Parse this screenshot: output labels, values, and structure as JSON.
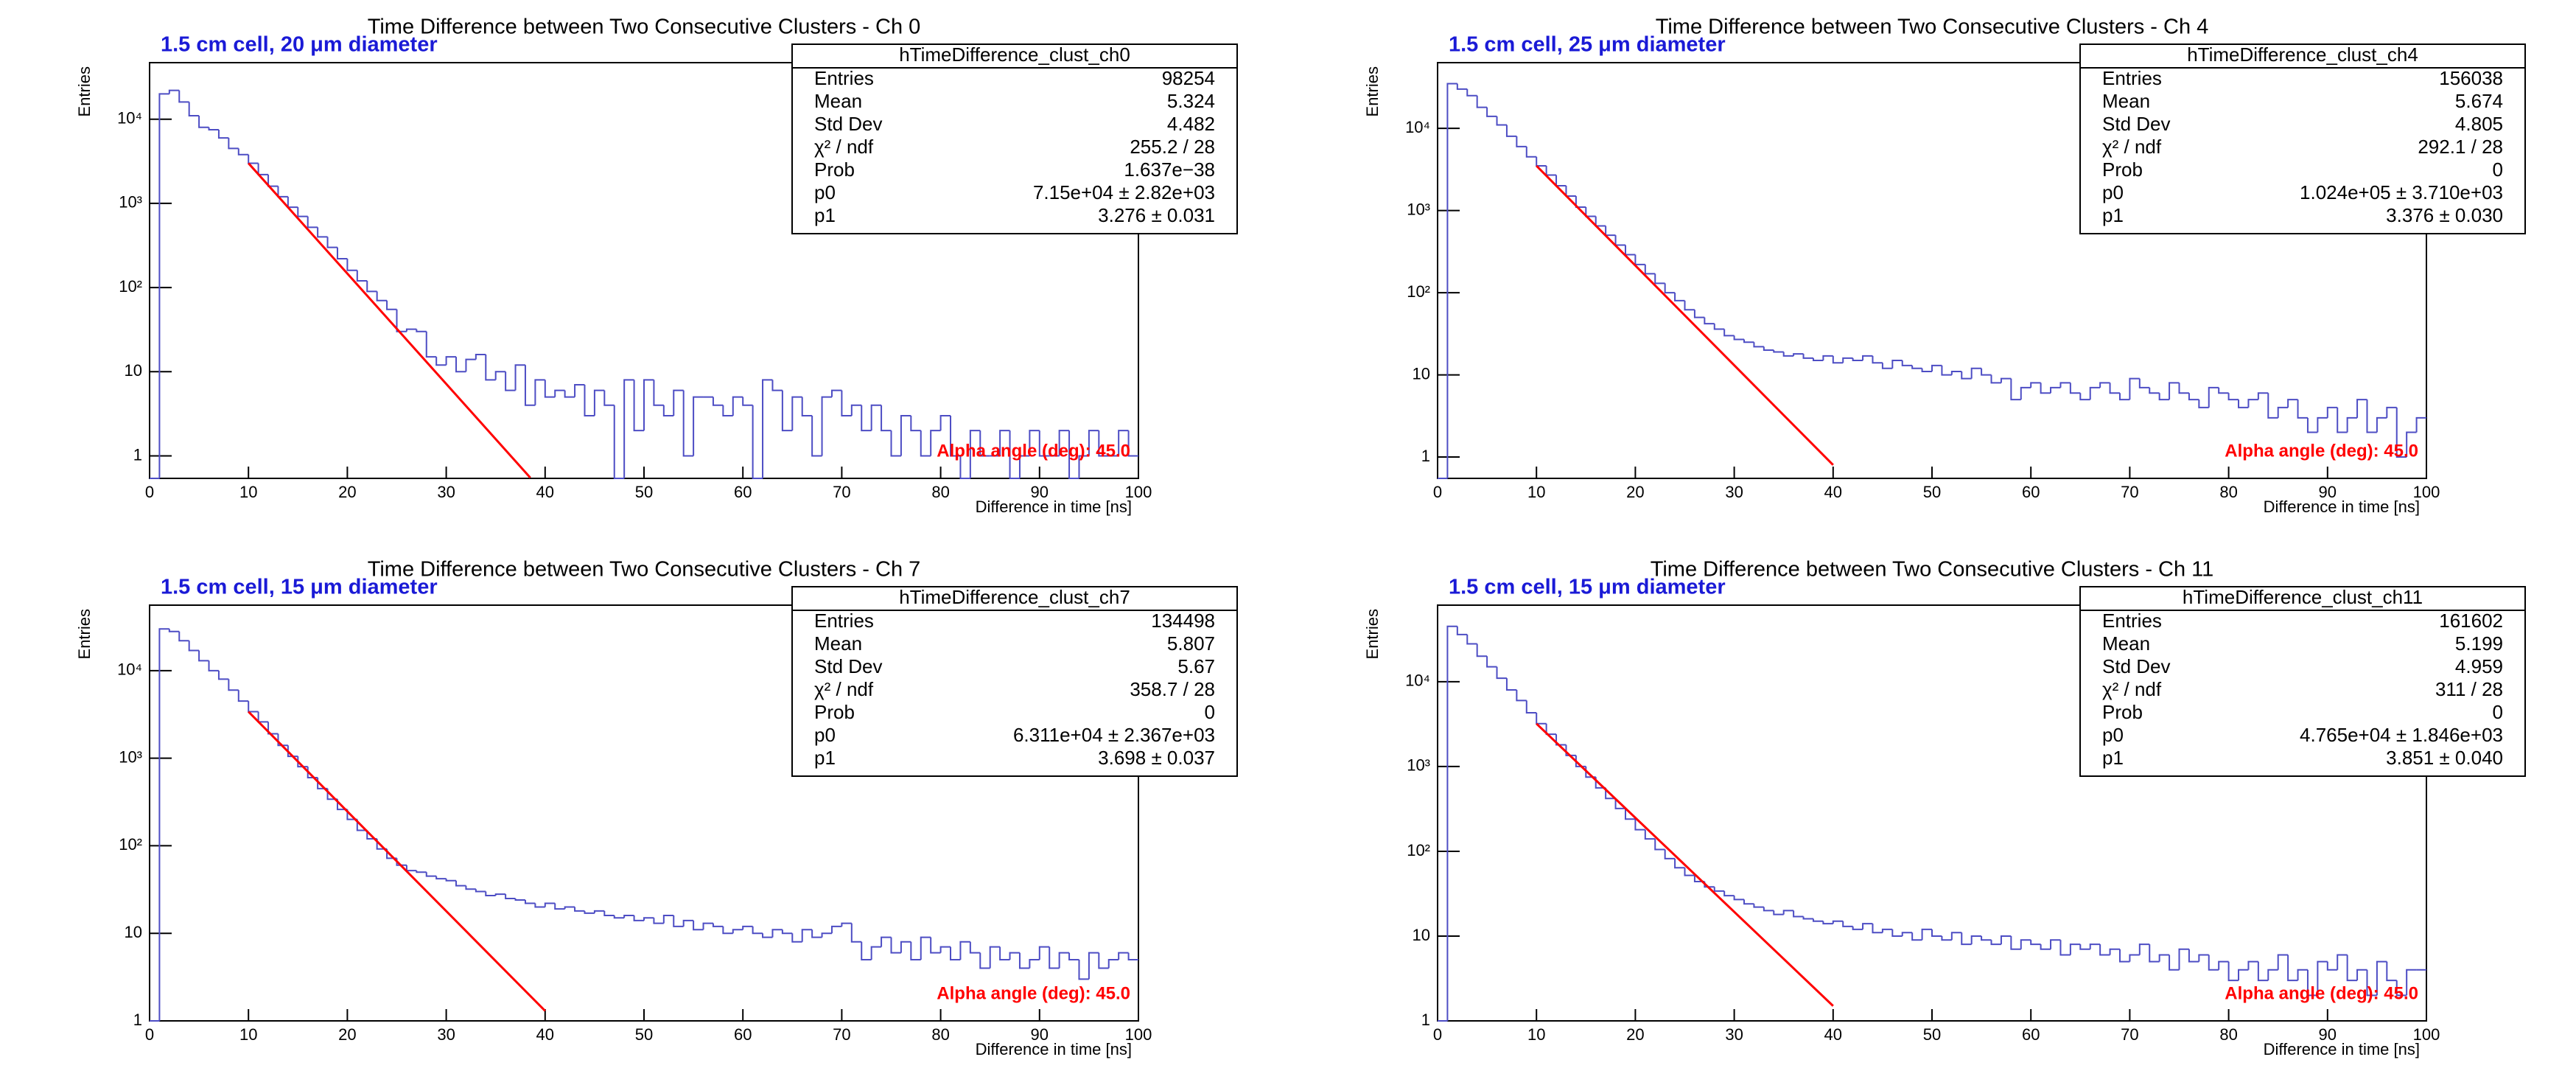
{
  "chart_data": [
    {
      "type": "histogram",
      "title": "Time Difference between Two Consecutive Clusters - Ch 0",
      "subtitle": "1.5 cm cell, 20  μm diameter",
      "x_label": "Difference in time [ns]",
      "y_label": "Entries",
      "annotation": "Alpha angle (deg): 45.0",
      "color": "#4d4dc4",
      "log_y": true,
      "xlim": [
        0,
        100
      ],
      "ylim": [
        0.54,
        47000
      ],
      "xticks": [
        0,
        10,
        20,
        30,
        40,
        50,
        60,
        70,
        80,
        90,
        100
      ],
      "yticks": [
        1,
        10,
        {
          "value": 100,
          "label": "10²"
        },
        {
          "value": 1000,
          "label": "10³"
        },
        {
          "value": 10000,
          "label": "10⁴"
        }
      ],
      "bins": [
        0,
        1,
        2,
        3,
        4,
        5,
        6,
        7,
        8,
        9,
        10,
        11,
        12,
        13,
        14,
        15,
        16,
        17,
        18,
        19,
        20,
        21,
        22,
        23,
        24,
        25,
        26,
        27,
        28,
        29,
        30,
        31,
        32,
        33,
        34,
        35,
        36,
        37,
        38,
        39,
        40,
        41,
        42,
        43,
        44,
        45,
        46,
        47,
        48,
        49,
        50,
        51,
        52,
        53,
        54,
        55,
        56,
        57,
        58,
        59,
        60,
        61,
        62,
        63,
        64,
        65,
        66,
        67,
        68,
        69,
        70,
        71,
        72,
        73,
        74,
        75,
        76,
        77,
        78,
        79,
        80,
        81,
        82,
        83,
        84,
        85,
        86,
        87,
        88,
        89,
        90,
        91,
        92,
        93,
        94,
        95,
        96,
        97,
        98,
        99,
        100
      ],
      "values": [
        0,
        20000,
        22000,
        16000,
        11000,
        8000,
        7500,
        6000,
        4500,
        3800,
        3000,
        2200,
        1600,
        1200,
        900,
        700,
        520,
        400,
        300,
        220,
        160,
        120,
        90,
        70,
        55,
        30,
        32,
        30,
        15,
        12,
        15,
        10,
        14,
        16,
        8,
        10,
        6,
        12,
        4,
        8,
        5,
        6,
        5,
        7,
        3,
        6,
        4,
        0,
        8,
        2,
        8,
        4,
        3,
        6,
        1,
        5,
        5,
        4,
        3,
        5,
        4,
        0,
        8,
        6,
        2,
        5,
        3,
        1,
        5,
        6,
        3,
        4,
        2,
        4,
        2,
        1,
        3,
        2,
        1,
        2,
        3,
        1,
        0,
        2,
        1,
        1,
        2,
        0,
        1,
        2,
        1,
        1,
        2,
        0,
        1,
        2,
        1,
        1,
        2,
        1
      ],
      "fit": {
        "color": "#ff0000",
        "x": [
          10,
          38.5
        ],
        "values": [
          3000,
          0.55
        ]
      },
      "stats": {
        "name": "hTimeDifference_clust_ch0",
        "rows": [
          [
            "Entries",
            "98254"
          ],
          [
            "Mean",
            "5.324"
          ],
          [
            "Std Dev",
            "4.482"
          ],
          [
            "χ² / ndf",
            "255.2 / 28"
          ],
          [
            "Prob",
            "1.637e−38"
          ],
          [
            "p0",
            "7.15e+04 ± 2.82e+03"
          ],
          [
            "p1",
            "3.276 ± 0.031"
          ]
        ]
      }
    },
    {
      "type": "histogram",
      "title": "Time Difference between Two Consecutive Clusters - Ch 4",
      "subtitle": "1.5 cm cell, 25  μm diameter",
      "x_label": "Difference in time [ns]",
      "y_label": "Entries",
      "annotation": "Alpha angle (deg): 45.0",
      "color": "#4d4dc4",
      "log_y": true,
      "xlim": [
        0,
        100
      ],
      "ylim": [
        0.55,
        63000
      ],
      "xticks": [
        0,
        10,
        20,
        30,
        40,
        50,
        60,
        70,
        80,
        90,
        100
      ],
      "yticks": [
        1,
        10,
        {
          "value": 100,
          "label": "10²"
        },
        {
          "value": 1000,
          "label": "10³"
        },
        {
          "value": 10000,
          "label": "10⁴"
        }
      ],
      "bins": [
        0,
        1,
        2,
        3,
        4,
        5,
        6,
        7,
        8,
        9,
        10,
        11,
        12,
        13,
        14,
        15,
        16,
        17,
        18,
        19,
        20,
        21,
        22,
        23,
        24,
        25,
        26,
        27,
        28,
        29,
        30,
        31,
        32,
        33,
        34,
        35,
        36,
        37,
        38,
        39,
        40,
        41,
        42,
        43,
        44,
        45,
        46,
        47,
        48,
        49,
        50,
        51,
        52,
        53,
        54,
        55,
        56,
        57,
        58,
        59,
        60,
        61,
        62,
        63,
        64,
        65,
        66,
        67,
        68,
        69,
        70,
        71,
        72,
        73,
        74,
        75,
        76,
        77,
        78,
        79,
        80,
        81,
        82,
        83,
        84,
        85,
        86,
        87,
        88,
        89,
        90,
        91,
        92,
        93,
        94,
        95,
        96,
        97,
        98,
        99,
        100
      ],
      "values": [
        0,
        35000,
        30000,
        25000,
        18000,
        14000,
        11000,
        8000,
        6000,
        4500,
        3500,
        2700,
        2000,
        1500,
        1100,
        850,
        650,
        500,
        380,
        290,
        220,
        170,
        130,
        100,
        80,
        62,
        50,
        42,
        36,
        30,
        27,
        25,
        22,
        20,
        19,
        17,
        18,
        16,
        15,
        17,
        14,
        16,
        15,
        17,
        14,
        12,
        15,
        13,
        12,
        11,
        13,
        10,
        11,
        9,
        12,
        10,
        8,
        9,
        5,
        7,
        8,
        6,
        7,
        8,
        6,
        5,
        7,
        8,
        6,
        5,
        9,
        7,
        6,
        5,
        8,
        6,
        5,
        4,
        7,
        6,
        5,
        4,
        5,
        6,
        3,
        4,
        5,
        3,
        2,
        3,
        4,
        2,
        3,
        5,
        2,
        3,
        4,
        1,
        2,
        3
      ],
      "fit": {
        "color": "#ff0000",
        "x": [
          10,
          40
        ],
        "values": [
          3500,
          0.8
        ]
      },
      "stats": {
        "name": "hTimeDifference_clust_ch4",
        "rows": [
          [
            "Entries",
            "156038"
          ],
          [
            "Mean",
            "5.674"
          ],
          [
            "Std Dev",
            "4.805"
          ],
          [
            "χ² / ndf",
            "292.1 / 28"
          ],
          [
            "Prob",
            "0"
          ],
          [
            "p0",
            "1.024e+05 ± 3.710e+03"
          ],
          [
            "p1",
            "3.376 ± 0.030"
          ]
        ]
      }
    },
    {
      "type": "histogram",
      "title": "Time Difference between Two Consecutive Clusters - Ch 7",
      "subtitle": "1.5 cm cell, 15  μm diameter",
      "x_label": "Difference in time [ns]",
      "y_label": "Entries",
      "annotation": "Alpha angle (deg): 45.0",
      "color": "#4d4dc4",
      "log_y": true,
      "xlim": [
        0,
        100
      ],
      "ylim": [
        1,
        56000
      ],
      "xticks": [
        0,
        10,
        20,
        30,
        40,
        50,
        60,
        70,
        80,
        90,
        100
      ],
      "yticks": [
        1,
        10,
        {
          "value": 100,
          "label": "10²"
        },
        {
          "value": 1000,
          "label": "10³"
        },
        {
          "value": 10000,
          "label": "10⁴"
        }
      ],
      "bins": [
        0,
        1,
        2,
        3,
        4,
        5,
        6,
        7,
        8,
        9,
        10,
        11,
        12,
        13,
        14,
        15,
        16,
        17,
        18,
        19,
        20,
        21,
        22,
        23,
        24,
        25,
        26,
        27,
        28,
        29,
        30,
        31,
        32,
        33,
        34,
        35,
        36,
        37,
        38,
        39,
        40,
        41,
        42,
        43,
        44,
        45,
        46,
        47,
        48,
        49,
        50,
        51,
        52,
        53,
        54,
        55,
        56,
        57,
        58,
        59,
        60,
        61,
        62,
        63,
        64,
        65,
        66,
        67,
        68,
        69,
        70,
        71,
        72,
        73,
        74,
        75,
        76,
        77,
        78,
        79,
        80,
        81,
        82,
        83,
        84,
        85,
        86,
        87,
        88,
        89,
        90,
        91,
        92,
        93,
        94,
        95,
        96,
        97,
        98,
        99,
        100
      ],
      "values": [
        0,
        30000,
        28000,
        22000,
        17000,
        13000,
        10000,
        8000,
        6000,
        4500,
        3400,
        2600,
        1900,
        1400,
        1050,
        800,
        600,
        450,
        340,
        260,
        200,
        150,
        120,
        92,
        72,
        60,
        52,
        50,
        45,
        42,
        40,
        35,
        32,
        30,
        27,
        28,
        25,
        24,
        22,
        20,
        22,
        19,
        20,
        18,
        17,
        18,
        16,
        15,
        16,
        14,
        15,
        13,
        16,
        12,
        14,
        11,
        13,
        12,
        10,
        11,
        12,
        10,
        9,
        11,
        10,
        8,
        11,
        9,
        10,
        12,
        13,
        8,
        5,
        7,
        9,
        6,
        8,
        5,
        9,
        6,
        7,
        5,
        8,
        6,
        4,
        7,
        5,
        6,
        4,
        5,
        7,
        4,
        6,
        5,
        3,
        6,
        4,
        5,
        6,
        5
      ],
      "fit": {
        "color": "#ff0000",
        "x": [
          10,
          40
        ],
        "values": [
          3400,
          1.3
        ]
      },
      "stats": {
        "name": "hTimeDifference_clust_ch7",
        "rows": [
          [
            "Entries",
            "134498"
          ],
          [
            "Mean",
            "5.807"
          ],
          [
            "Std Dev",
            "5.67"
          ],
          [
            "χ² / ndf",
            "358.7 / 28"
          ],
          [
            "Prob",
            "0"
          ],
          [
            "p0",
            "6.311e+04 ± 2.367e+03"
          ],
          [
            "p1",
            "3.698 ± 0.037"
          ]
        ]
      }
    },
    {
      "type": "histogram",
      "title": "Time Difference between Two Consecutive Clusters - Ch 11",
      "subtitle": "1.5 cm cell, 15  μm diameter",
      "x_label": "Difference in time [ns]",
      "y_label": "Entries",
      "annotation": "Alpha angle (deg): 45.0",
      "color": "#4d4dc4",
      "log_y": true,
      "xlim": [
        0,
        100
      ],
      "ylim": [
        1,
        80000
      ],
      "xticks": [
        0,
        10,
        20,
        30,
        40,
        50,
        60,
        70,
        80,
        90,
        100
      ],
      "yticks": [
        1,
        10,
        {
          "value": 100,
          "label": "10²"
        },
        {
          "value": 1000,
          "label": "10³"
        },
        {
          "value": 10000,
          "label": "10⁴"
        }
      ],
      "bins": [
        0,
        1,
        2,
        3,
        4,
        5,
        6,
        7,
        8,
        9,
        10,
        11,
        12,
        13,
        14,
        15,
        16,
        17,
        18,
        19,
        20,
        21,
        22,
        23,
        24,
        25,
        26,
        27,
        28,
        29,
        30,
        31,
        32,
        33,
        34,
        35,
        36,
        37,
        38,
        39,
        40,
        41,
        42,
        43,
        44,
        45,
        46,
        47,
        48,
        49,
        50,
        51,
        52,
        53,
        54,
        55,
        56,
        57,
        58,
        59,
        60,
        61,
        62,
        63,
        64,
        65,
        66,
        67,
        68,
        69,
        70,
        71,
        72,
        73,
        74,
        75,
        76,
        77,
        78,
        79,
        80,
        81,
        82,
        83,
        84,
        85,
        86,
        87,
        88,
        89,
        90,
        91,
        92,
        93,
        94,
        95,
        96,
        97,
        98,
        99,
        100
      ],
      "values": [
        0,
        45000,
        36000,
        28000,
        20000,
        15000,
        11000,
        8000,
        6000,
        4300,
        3200,
        2400,
        1800,
        1350,
        1000,
        750,
        560,
        420,
        320,
        240,
        180,
        140,
        105,
        82,
        64,
        52,
        44,
        38,
        34,
        30,
        27,
        24,
        22,
        20,
        18,
        20,
        17,
        16,
        15,
        14,
        15,
        13,
        12,
        14,
        11,
        12,
        10,
        11,
        9,
        12,
        10,
        9,
        11,
        8,
        10,
        9,
        8,
        10,
        7,
        9,
        8,
        7,
        9,
        6,
        8,
        7,
        8,
        6,
        7,
        5,
        6,
        8,
        5,
        6,
        4,
        7,
        5,
        6,
        4,
        5,
        3,
        4,
        5,
        3,
        4,
        6,
        3,
        4,
        2,
        5,
        4,
        6,
        3,
        4,
        2,
        5,
        3,
        2,
        4,
        4
      ],
      "fit": {
        "color": "#ff0000",
        "x": [
          10,
          40
        ],
        "values": [
          3200,
          1.5
        ]
      },
      "stats": {
        "name": "hTimeDifference_clust_ch11",
        "rows": [
          [
            "Entries",
            "161602"
          ],
          [
            "Mean",
            "5.199"
          ],
          [
            "Std Dev",
            "4.959"
          ],
          [
            "χ² / ndf",
            "311 / 28"
          ],
          [
            "Prob",
            "0"
          ],
          [
            "p0",
            "4.765e+04 ± 1.846e+03"
          ],
          [
            "p1",
            "3.851 ± 0.040"
          ]
        ]
      }
    }
  ]
}
